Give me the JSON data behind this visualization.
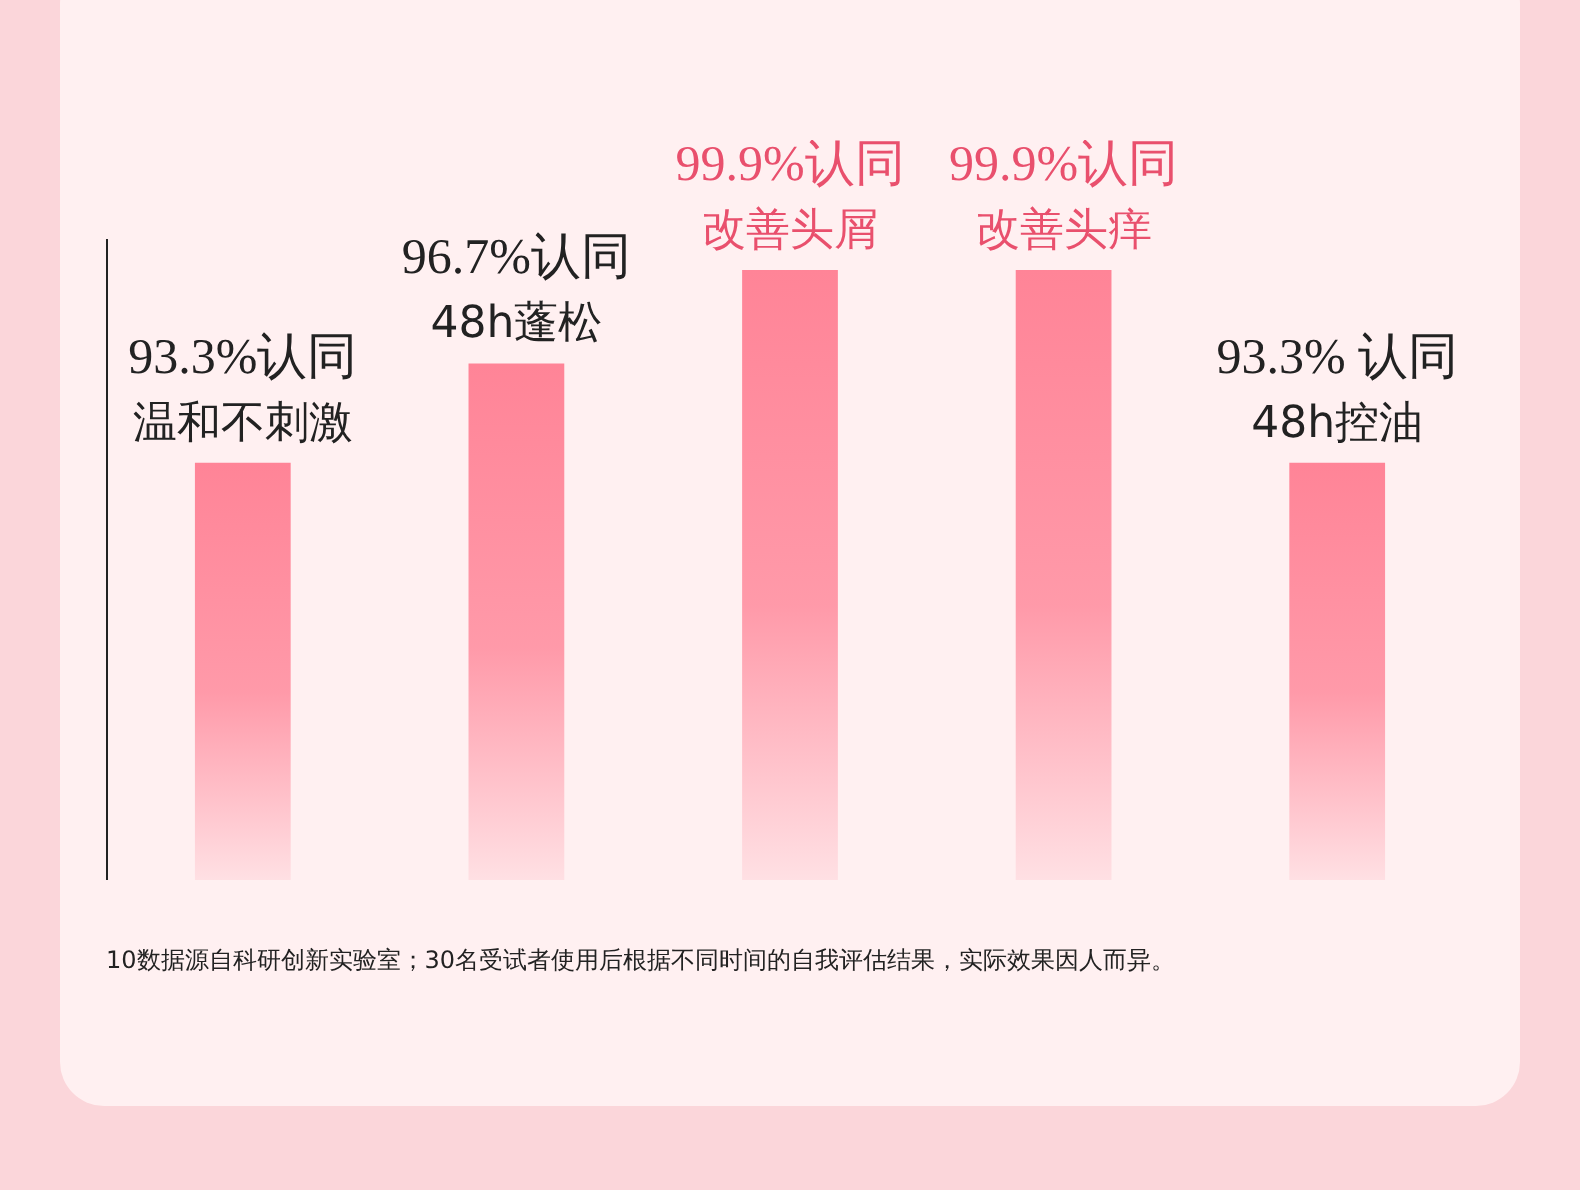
{
  "chart_data": {
    "type": "bar",
    "categories": [
      "温和不刺激",
      "48h蓬松",
      "改善头屑",
      "改善头痒",
      "48h控油"
    ],
    "values": [
      93.3,
      96.7,
      99.9,
      99.9,
      93.3
    ],
    "value_labels": [
      "93.3%认同",
      "96.7%认同",
      "99.9%认同",
      "99.9%认同",
      "93.3% 认同"
    ],
    "color": "#ff8497",
    "ylim": [
      79,
      101
    ],
    "grid": false,
    "annotations": [
      "10数据源自科研创新实验室；30名受试者使用后根据不同时间的自我评估结果，实际效果因人而异。"
    ]
  }
}
